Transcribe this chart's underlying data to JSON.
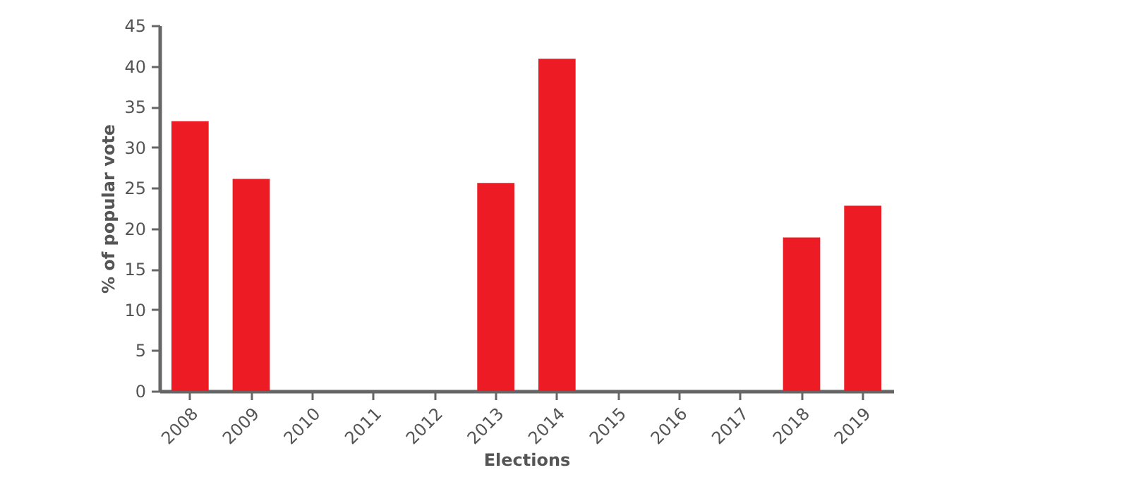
{
  "chart_data": {
    "type": "bar",
    "xlabel": "Elections",
    "ylabel": "% of popular vote",
    "categories": [
      "2008",
      "2009",
      "2010",
      "2011",
      "2012",
      "2013",
      "2014",
      "2015",
      "2016",
      "2017",
      "2018",
      "2019"
    ],
    "values": [
      33.2,
      26.1,
      null,
      null,
      null,
      25.6,
      40.9,
      null,
      null,
      null,
      18.9,
      22.8
    ],
    "color": "#ed1c24",
    "ylim": [
      0,
      45
    ],
    "yticks": [
      0,
      5,
      10,
      15,
      20,
      25,
      30,
      35,
      40,
      45
    ],
    "grid": false
  }
}
